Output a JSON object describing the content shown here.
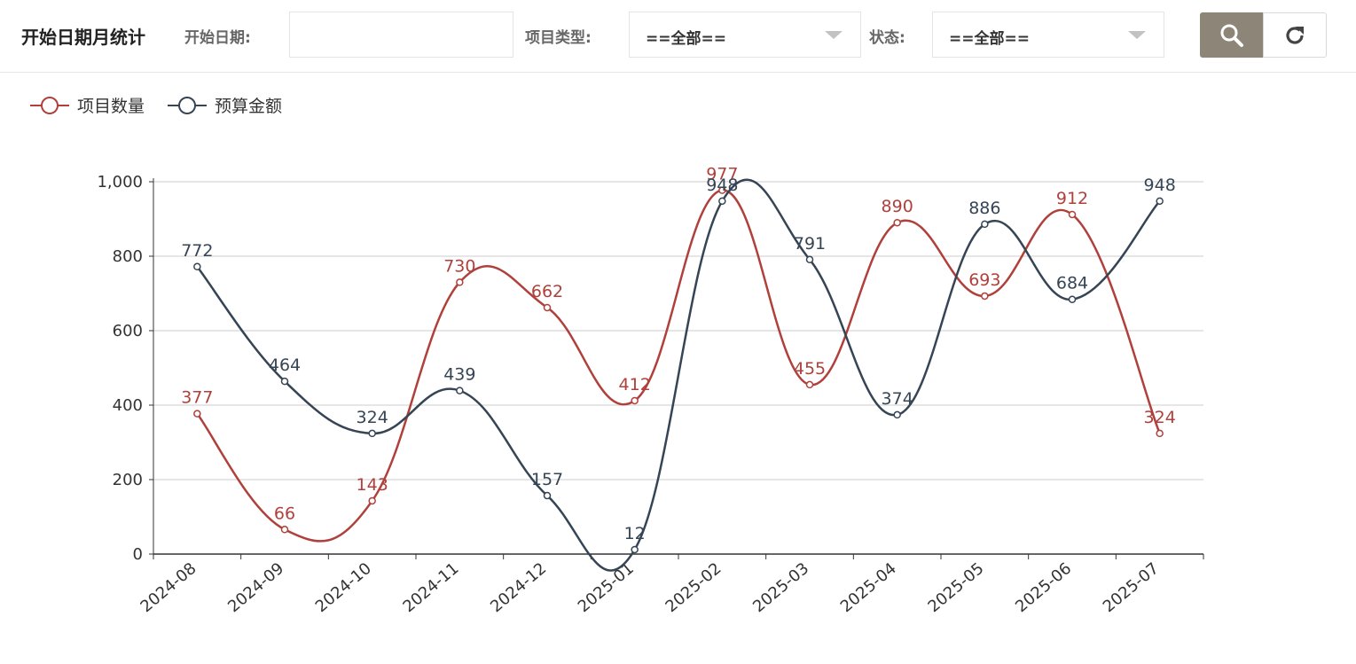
{
  "filters": {
    "title": "开始日期月统计",
    "start_date_label": "开始日期:",
    "start_date_value": "",
    "project_type_label": "项目类型:",
    "project_type_value": "==全部==",
    "status_label": "状态:",
    "status_value": "==全部==",
    "search_icon": "search-icon",
    "refresh_icon": "refresh-icon"
  },
  "colors": {
    "series1": "#b0403b",
    "series2": "#364555",
    "axis": "#333333",
    "grid": "#cccccc",
    "search_button": "#8d8578"
  },
  "chart_data": {
    "type": "line",
    "smooth": true,
    "legend_position": "top-left",
    "grid": true,
    "x": [
      "2024-08",
      "2024-09",
      "2024-10",
      "2024-11",
      "2024-12",
      "2025-01",
      "2025-02",
      "2025-03",
      "2025-04",
      "2025-05",
      "2025-06",
      "2025-07"
    ],
    "series": [
      {
        "name": "项目数量",
        "values": [
          377,
          66,
          143,
          730,
          662,
          412,
          977,
          455,
          890,
          693,
          912,
          324
        ]
      },
      {
        "name": "预算金额",
        "values": [
          772,
          464,
          324,
          439,
          157,
          12,
          948,
          791,
          374,
          886,
          684,
          948
        ]
      }
    ],
    "ylim": [
      0,
      1000
    ],
    "yticks": [
      0,
      200,
      400,
      600,
      800,
      1000
    ],
    "ytick_labels": [
      "0",
      "200",
      "400",
      "600",
      "800",
      "1,000"
    ]
  }
}
